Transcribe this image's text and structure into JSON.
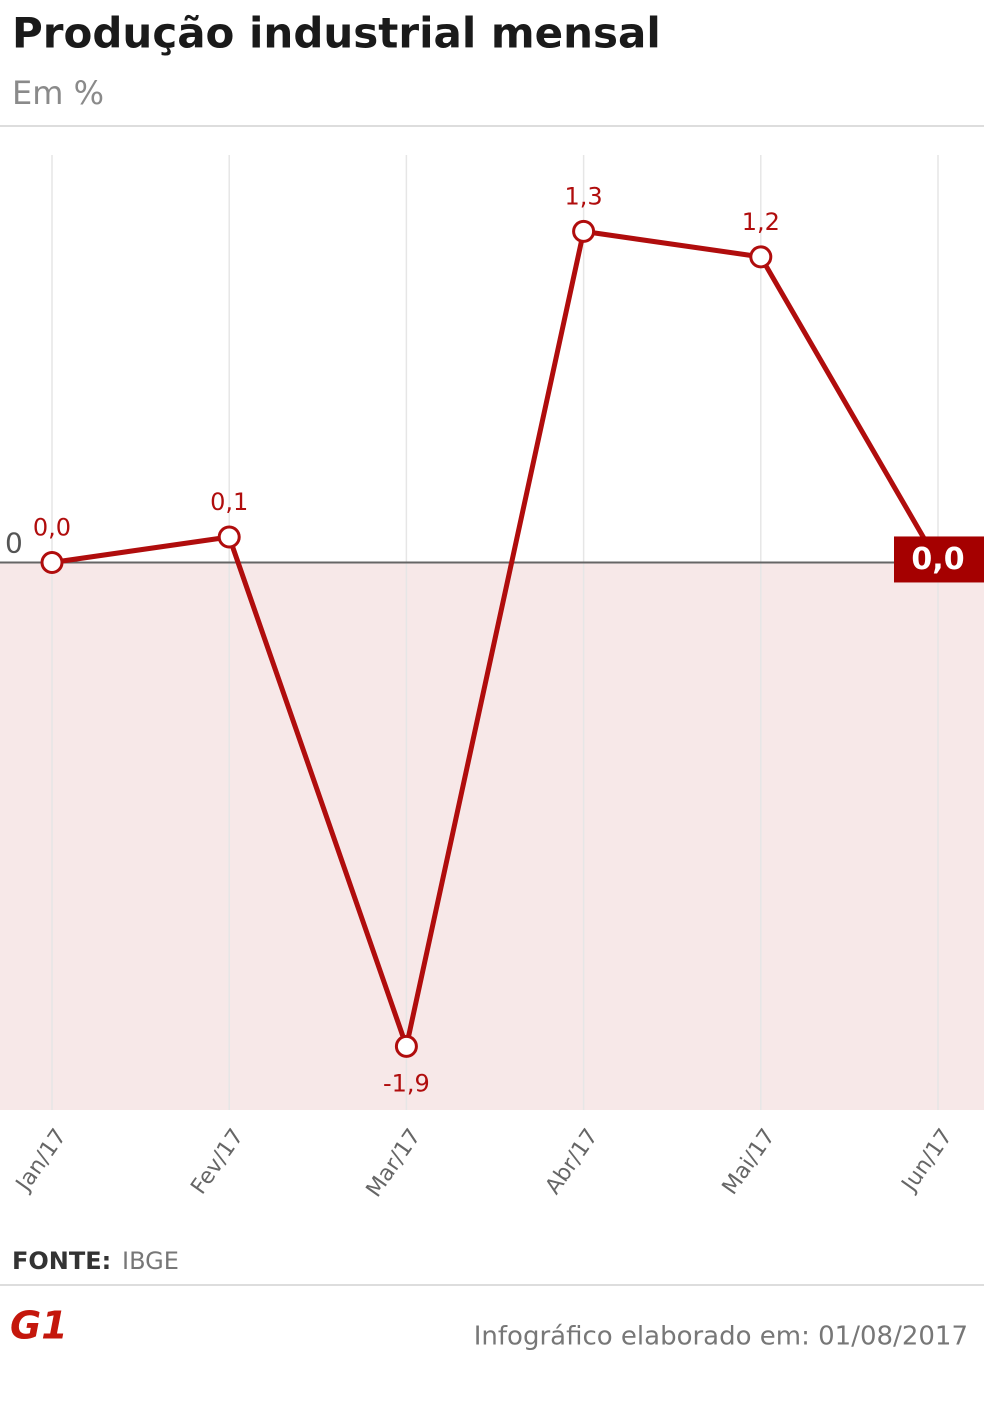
{
  "title": "Produção industrial mensal",
  "subtitle": "Em %",
  "chart_data": {
    "type": "line",
    "categories": [
      "Jan/17",
      "Fev/17",
      "Mar/17",
      "Abr/17",
      "Mai/17",
      "Jun/17"
    ],
    "series": [
      {
        "color": "#b00d0d",
        "values": [
          0.0,
          0.1,
          -1.9,
          1.3,
          1.2,
          0.0
        ],
        "value_labels": [
          "0,0",
          "0,1",
          "-1,9",
          "1,3",
          "1,2",
          "0,0"
        ]
      }
    ],
    "ylim": [
      -2.15,
      1.6
    ],
    "yticks": [
      0
    ],
    "grid": true
  },
  "source_label": "FONTE:",
  "source": "IBGE",
  "logo": "G1",
  "footer": "Infográfico elaborado em: 01/08/2017"
}
